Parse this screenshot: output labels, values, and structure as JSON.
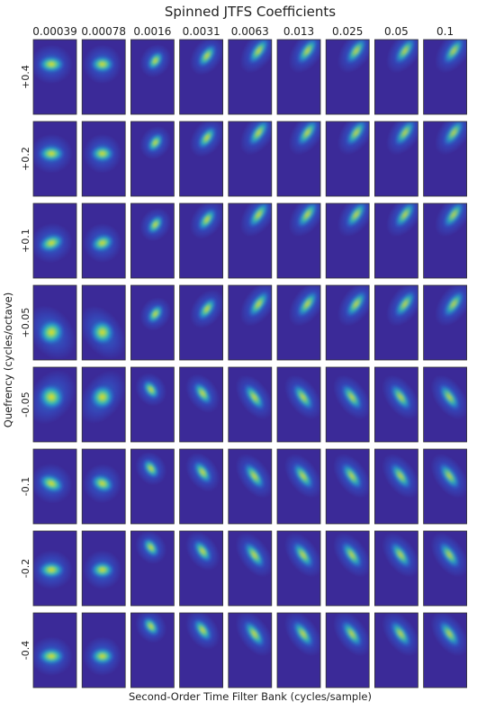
{
  "chart_data": {
    "type": "heatmap",
    "title": "Spinned JTFS Coefficients",
    "xlabel": "Second-Order Time Filter Bank (cycles/sample)",
    "ylabel": "Quefrency (cycles/octave)",
    "columns": [
      "0.00039",
      "0.00078",
      "0.0016",
      "0.0031",
      "0.0063",
      "0.013",
      "0.025",
      "0.05",
      "0.1"
    ],
    "rows": [
      "+0.4",
      "+0.2",
      "+0.1",
      "+0.05",
      "-0.05",
      "-0.1",
      "-0.2",
      "-0.4"
    ],
    "colormap": [
      "#3b2a98",
      "#2f5fd6",
      "#1fa4d6",
      "#3fc9a0",
      "#a6d64a",
      "#f2e21e"
    ],
    "background_color": "#3b2a98",
    "grid": false,
    "legend": "none",
    "layout": "8 rows x 9 columns of small heatmap panels"
  }
}
